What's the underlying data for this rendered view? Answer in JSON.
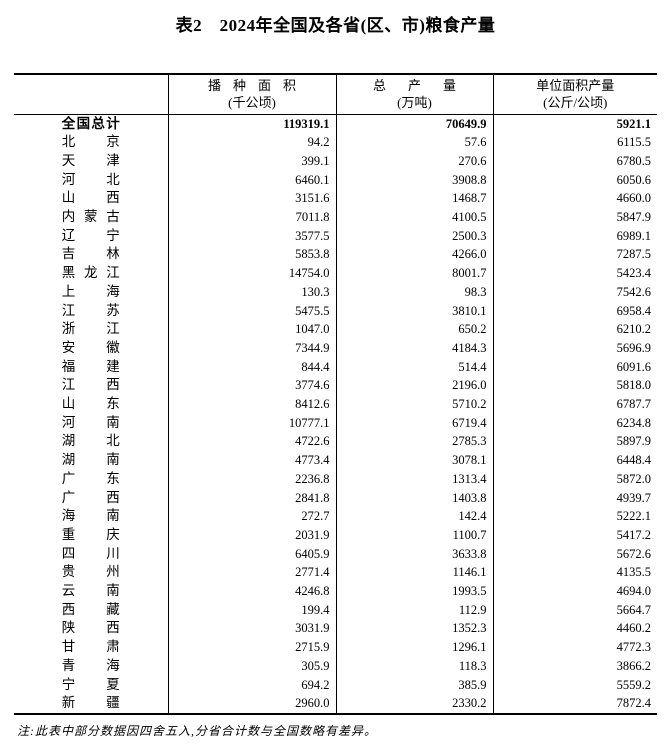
{
  "title": "表2　2024年全国及各省(区、市)粮食产量",
  "table": {
    "columns": [
      {
        "label": "",
        "sub": ""
      },
      {
        "label": "播种面积",
        "sub": "(千公顷)"
      },
      {
        "label": "总产量",
        "sub": "(万吨)"
      },
      {
        "label": "单位面积产量",
        "sub": "(公斤/公顷)"
      }
    ],
    "rows": [
      {
        "region": "全国总计",
        "sown_area": "119319.1",
        "output": "70649.9",
        "yield": "5921.1",
        "bold": true
      },
      {
        "region": "北京",
        "sown_area": "94.2",
        "output": "57.6",
        "yield": "6115.5",
        "bold": false
      },
      {
        "region": "天津",
        "sown_area": "399.1",
        "output": "270.6",
        "yield": "6780.5",
        "bold": false
      },
      {
        "region": "河北",
        "sown_area": "6460.1",
        "output": "3908.8",
        "yield": "6050.6",
        "bold": false
      },
      {
        "region": "山西",
        "sown_area": "3151.6",
        "output": "1468.7",
        "yield": "4660.0",
        "bold": false
      },
      {
        "region": "内蒙古",
        "sown_area": "7011.8",
        "output": "4100.5",
        "yield": "5847.9",
        "bold": false
      },
      {
        "region": "辽宁",
        "sown_area": "3577.5",
        "output": "2500.3",
        "yield": "6989.1",
        "bold": false
      },
      {
        "region": "吉林",
        "sown_area": "5853.8",
        "output": "4266.0",
        "yield": "7287.5",
        "bold": false
      },
      {
        "region": "黑龙江",
        "sown_area": "14754.0",
        "output": "8001.7",
        "yield": "5423.4",
        "bold": false
      },
      {
        "region": "上海",
        "sown_area": "130.3",
        "output": "98.3",
        "yield": "7542.6",
        "bold": false
      },
      {
        "region": "江苏",
        "sown_area": "5475.5",
        "output": "3810.1",
        "yield": "6958.4",
        "bold": false
      },
      {
        "region": "浙江",
        "sown_area": "1047.0",
        "output": "650.2",
        "yield": "6210.2",
        "bold": false
      },
      {
        "region": "安徽",
        "sown_area": "7344.9",
        "output": "4184.3",
        "yield": "5696.9",
        "bold": false
      },
      {
        "region": "福建",
        "sown_area": "844.4",
        "output": "514.4",
        "yield": "6091.6",
        "bold": false
      },
      {
        "region": "江西",
        "sown_area": "3774.6",
        "output": "2196.0",
        "yield": "5818.0",
        "bold": false
      },
      {
        "region": "山东",
        "sown_area": "8412.6",
        "output": "5710.2",
        "yield": "6787.7",
        "bold": false
      },
      {
        "region": "河南",
        "sown_area": "10777.1",
        "output": "6719.4",
        "yield": "6234.8",
        "bold": false
      },
      {
        "region": "湖北",
        "sown_area": "4722.6",
        "output": "2785.3",
        "yield": "5897.9",
        "bold": false
      },
      {
        "region": "湖南",
        "sown_area": "4773.4",
        "output": "3078.1",
        "yield": "6448.4",
        "bold": false
      },
      {
        "region": "广东",
        "sown_area": "2236.8",
        "output": "1313.4",
        "yield": "5872.0",
        "bold": false
      },
      {
        "region": "广西",
        "sown_area": "2841.8",
        "output": "1403.8",
        "yield": "4939.7",
        "bold": false
      },
      {
        "region": "海南",
        "sown_area": "272.7",
        "output": "142.4",
        "yield": "5222.1",
        "bold": false
      },
      {
        "region": "重庆",
        "sown_area": "2031.9",
        "output": "1100.7",
        "yield": "5417.2",
        "bold": false
      },
      {
        "region": "四川",
        "sown_area": "6405.9",
        "output": "3633.8",
        "yield": "5672.6",
        "bold": false
      },
      {
        "region": "贵州",
        "sown_area": "2771.4",
        "output": "1146.1",
        "yield": "4135.5",
        "bold": false
      },
      {
        "region": "云南",
        "sown_area": "4246.8",
        "output": "1993.5",
        "yield": "4694.0",
        "bold": false
      },
      {
        "region": "西藏",
        "sown_area": "199.4",
        "output": "112.9",
        "yield": "5664.7",
        "bold": false
      },
      {
        "region": "陕西",
        "sown_area": "3031.9",
        "output": "1352.3",
        "yield": "4460.2",
        "bold": false
      },
      {
        "region": "甘肃",
        "sown_area": "2715.9",
        "output": "1296.1",
        "yield": "4772.3",
        "bold": false
      },
      {
        "region": "青海",
        "sown_area": "305.9",
        "output": "118.3",
        "yield": "3866.2",
        "bold": false
      },
      {
        "region": "宁夏",
        "sown_area": "694.2",
        "output": "385.9",
        "yield": "5559.2",
        "bold": false
      },
      {
        "region": "新疆",
        "sown_area": "2960.0",
        "output": "2330.2",
        "yield": "7872.4",
        "bold": false
      }
    ]
  },
  "footnote": "注:此表中部分数据因四舍五入,分省合计数与全国数略有差异。"
}
